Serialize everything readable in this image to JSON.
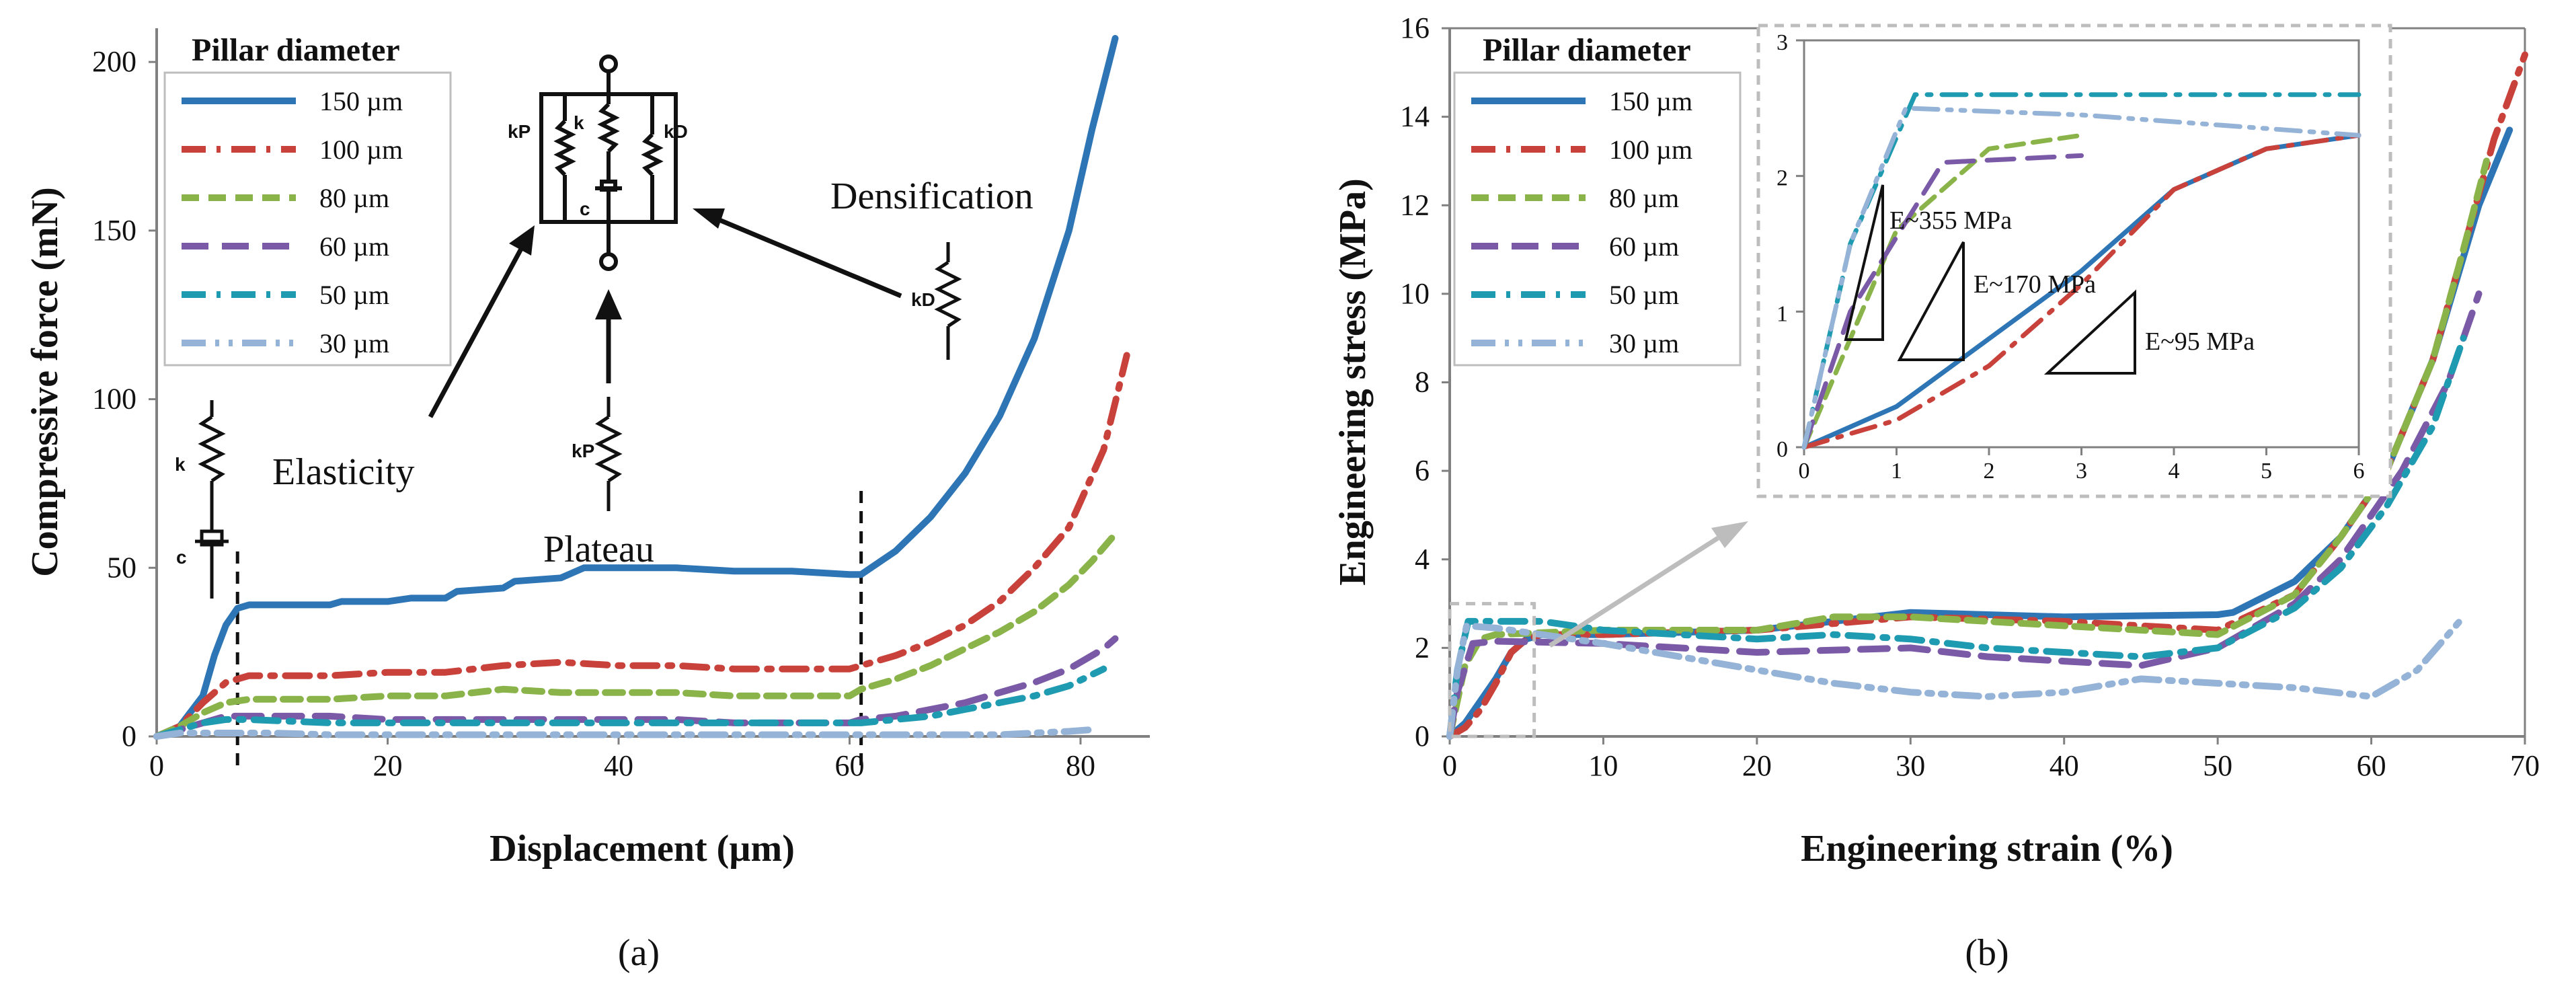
{
  "colors": {
    "d150": "#2E75B6",
    "d100": "#C9413B",
    "d80": "#8AB44A",
    "d60": "#7A5AA6",
    "d50": "#1E9BB0",
    "d30": "#95B3D7",
    "axis": "#808080",
    "arrow_gray": "#BDBDBD",
    "inset_border": "#BDBDBD"
  },
  "chart_data": [
    {
      "id": "a",
      "type": "line",
      "panel_label": "(a)",
      "title": "",
      "xlabel": "Displacement (µm)",
      "ylabel": "Compressive force (mN)",
      "xlim": [
        0,
        86
      ],
      "ylim": [
        0,
        210
      ],
      "xticks": [
        0,
        20,
        40,
        60,
        80
      ],
      "yticks": [
        0,
        50,
        100,
        150,
        200
      ],
      "legend_title": "Pillar diameter",
      "legend_position": "top-left",
      "series": [
        {
          "name": "150 µm",
          "color_key": "d150",
          "dash": "solid",
          "x": [
            0,
            2,
            4,
            5,
            6,
            7,
            8,
            15,
            16,
            20,
            22,
            25,
            26,
            30,
            31,
            35,
            37,
            40,
            45,
            50,
            55,
            60,
            61,
            64,
            67,
            70,
            73,
            76,
            79,
            81,
            83
          ],
          "y": [
            0,
            3,
            12,
            24,
            33,
            38,
            39,
            39,
            40,
            40,
            41,
            41,
            43,
            44,
            46,
            47,
            50,
            50,
            50,
            49,
            49,
            48,
            48,
            55,
            65,
            78,
            95,
            118,
            150,
            180,
            207
          ]
        },
        {
          "name": "100 µm",
          "color_key": "d100",
          "dash": "dashdot",
          "x": [
            0,
            2,
            4,
            6,
            8,
            15,
            20,
            25,
            30,
            35,
            40,
            45,
            50,
            55,
            60,
            61,
            64,
            67,
            70,
            73,
            76,
            79,
            82,
            84
          ],
          "y": [
            0,
            3,
            10,
            16,
            18,
            18,
            19,
            19,
            21,
            22,
            21,
            21,
            20,
            20,
            20,
            21,
            24,
            28,
            33,
            40,
            50,
            62,
            85,
            113
          ]
        },
        {
          "name": "80 µm",
          "color_key": "d80",
          "dash": "dashed",
          "x": [
            0,
            2,
            4,
            6,
            8,
            15,
            20,
            25,
            30,
            35,
            40,
            45,
            50,
            55,
            60,
            61,
            64,
            67,
            70,
            73,
            76,
            79,
            81,
            83
          ],
          "y": [
            0,
            3,
            7,
            10,
            11,
            11,
            12,
            12,
            14,
            13,
            13,
            13,
            12,
            12,
            12,
            14,
            17,
            21,
            26,
            31,
            37,
            45,
            52,
            60
          ]
        },
        {
          "name": "60 µm",
          "color_key": "d60",
          "dash": "longdash",
          "x": [
            0,
            2,
            4,
            6,
            8,
            15,
            20,
            25,
            30,
            35,
            40,
            45,
            50,
            55,
            60,
            61,
            64,
            67,
            70,
            73,
            76,
            79,
            82,
            83
          ],
          "y": [
            0,
            2,
            4,
            6,
            6,
            6,
            5,
            5,
            5,
            5,
            5,
            5,
            4,
            4,
            4,
            5,
            6,
            8,
            10,
            13,
            16,
            20,
            26,
            29
          ]
        },
        {
          "name": "50 µm",
          "color_key": "d50",
          "dash": "dashdot",
          "x": [
            0,
            2,
            4,
            6,
            8,
            15,
            20,
            25,
            30,
            35,
            40,
            45,
            50,
            55,
            60,
            61,
            64,
            67,
            70,
            73,
            76,
            79,
            82
          ],
          "y": [
            0,
            2,
            4,
            5,
            5,
            4,
            4,
            4,
            4,
            4,
            4,
            4,
            4,
            4,
            4,
            4,
            5,
            6,
            8,
            10,
            12,
            15,
            20
          ]
        },
        {
          "name": "30 µm",
          "color_key": "d30",
          "dash": "dashdotdot",
          "x": [
            0,
            2,
            4,
            6,
            10,
            15,
            20,
            30,
            40,
            50,
            55,
            60,
            61,
            65,
            70,
            73,
            76,
            79,
            81
          ],
          "y": [
            0,
            1,
            1,
            1,
            1,
            0.5,
            0.5,
            0.5,
            0.5,
            0.5,
            0.5,
            0.5,
            0.5,
            0.5,
            0.5,
            0.5,
            1,
            1.5,
            2
          ]
        }
      ],
      "annotations": {
        "elasticity": "Elasticity",
        "plateau": "Plateau",
        "densification": "Densification",
        "spring_k": "k",
        "spring_kp": "kP",
        "spring_kd": "kD",
        "damper_c": "c",
        "vlines_x": [
          7,
          61
        ]
      }
    },
    {
      "id": "b",
      "type": "line",
      "panel_label": "(b)",
      "title": "",
      "xlabel": "Engineering strain (%)",
      "ylabel": "Engineering stress (MPa)",
      "xlim": [
        0,
        70
      ],
      "ylim": [
        0,
        16
      ],
      "xticks": [
        0,
        10,
        20,
        30,
        40,
        50,
        60,
        70
      ],
      "yticks": [
        0,
        2,
        4,
        6,
        8,
        10,
        12,
        14,
        16
      ],
      "legend_title": "Pillar diameter",
      "legend_position": "top-left",
      "series": [
        {
          "name": "150 µm",
          "color_key": "d150",
          "dash": "solid",
          "x": [
            0,
            1,
            2,
            3,
            4,
            5,
            6,
            10,
            20,
            30,
            40,
            50,
            51,
            55,
            58,
            61,
            64,
            67,
            69
          ],
          "y": [
            0,
            0.3,
            0.8,
            1.3,
            1.9,
            2.2,
            2.3,
            2.3,
            2.4,
            2.8,
            2.7,
            2.75,
            2.8,
            3.5,
            4.5,
            6,
            8.5,
            12,
            13.7
          ]
        },
        {
          "name": "100 µm",
          "color_key": "d100",
          "dash": "dashdot",
          "x": [
            0,
            1,
            2,
            3,
            4,
            5,
            6,
            10,
            20,
            30,
            40,
            45,
            50,
            55,
            58,
            61,
            64,
            66,
            68,
            70
          ],
          "y": [
            0,
            0.2,
            0.6,
            1.2,
            1.9,
            2.2,
            2.3,
            2.3,
            2.4,
            2.7,
            2.6,
            2.5,
            2.4,
            3.2,
            4.5,
            6,
            8.5,
            11,
            13.5,
            15.4
          ]
        },
        {
          "name": "80 µm",
          "color_key": "d80",
          "dash": "dashed",
          "x": [
            0,
            1,
            2,
            3,
            10,
            20,
            25,
            30,
            40,
            45,
            50,
            55,
            58,
            61,
            64,
            66,
            67.5
          ],
          "y": [
            0,
            1.6,
            2.2,
            2.3,
            2.4,
            2.4,
            2.7,
            2.7,
            2.5,
            2.4,
            2.3,
            3.2,
            4.5,
            6,
            8.5,
            11,
            13
          ]
        },
        {
          "name": "60 µm",
          "color_key": "d60",
          "dash": "longdash",
          "x": [
            0,
            0.5,
            1.5,
            3,
            10,
            20,
            30,
            35,
            40,
            45,
            50,
            55,
            58,
            62,
            65,
            67
          ],
          "y": [
            0,
            1.0,
            2.1,
            2.15,
            2.1,
            1.9,
            2.0,
            1.8,
            1.7,
            1.6,
            2.0,
            3.0,
            4.0,
            6.0,
            8.0,
            10.0
          ]
        },
        {
          "name": "50 µm",
          "color_key": "d50",
          "dash": "dashdot",
          "x": [
            0,
            0.5,
            1.2,
            3,
            6,
            10,
            20,
            25,
            30,
            35,
            40,
            45,
            50,
            55,
            58,
            61,
            64,
            66
          ],
          "y": [
            0,
            1.5,
            2.6,
            2.6,
            2.6,
            2.4,
            2.2,
            2.3,
            2.2,
            2.0,
            1.9,
            1.8,
            2.0,
            2.9,
            3.8,
            5.2,
            7,
            9
          ]
        },
        {
          "name": "30 µm",
          "color_key": "d30",
          "dash": "dashdotdot",
          "x": [
            0,
            0.5,
            1.1,
            3,
            6,
            10,
            15,
            20,
            25,
            30,
            35,
            40,
            45,
            50,
            55,
            60,
            63,
            66
          ],
          "y": [
            0,
            1.5,
            2.5,
            2.45,
            2.3,
            2.1,
            1.8,
            1.5,
            1.2,
            1.0,
            0.9,
            1.0,
            1.3,
            1.2,
            1.1,
            0.9,
            1.5,
            2.7
          ]
        }
      ],
      "inset": {
        "xlim": [
          0,
          6
        ],
        "ylim": [
          0,
          3
        ],
        "xticks": [
          0,
          1,
          2,
          3,
          4,
          5,
          6
        ],
        "yticks": [
          0,
          1,
          2,
          3
        ],
        "zoom_box_strain": [
          0,
          5.5
        ],
        "zoom_box_stress": [
          0,
          3
        ],
        "annotations": [
          "E~355 MPa",
          "E~170 MPa",
          "E~95 MPa"
        ]
      }
    }
  ]
}
